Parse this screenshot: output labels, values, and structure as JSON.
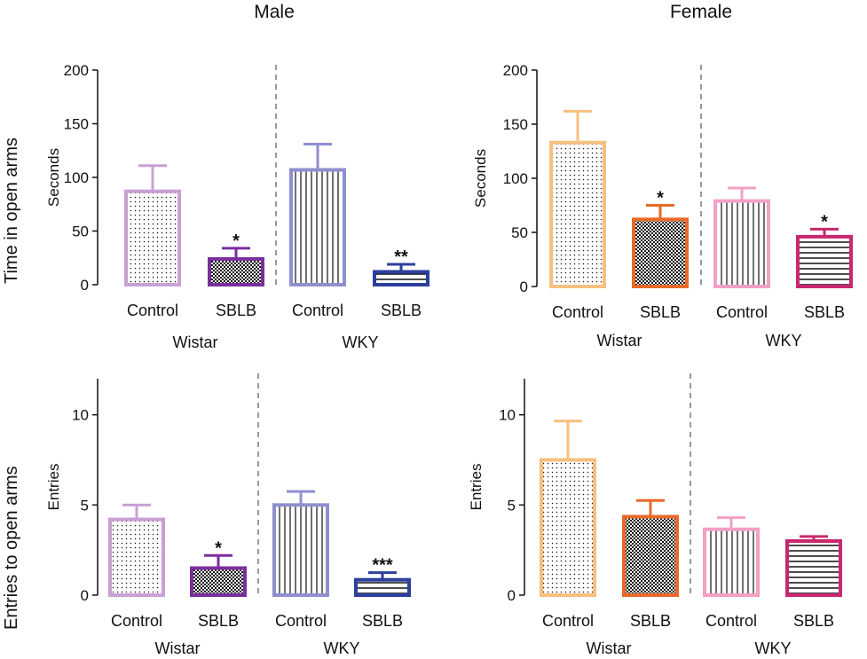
{
  "titles": {
    "male": "Male",
    "female": "Female",
    "row_time": "Time in open arms",
    "row_entries": "Entries to open arms"
  },
  "chart_data": [
    {
      "id": "male-time",
      "type": "bar",
      "ylabel": "Seconds",
      "ylim": [
        0,
        200
      ],
      "yticks": [
        0,
        50,
        100,
        150,
        200
      ],
      "groups": [
        "Wistar",
        "WKY"
      ],
      "categories": [
        "Control",
        "SBLB",
        "Control",
        "SBLB"
      ],
      "values": [
        87,
        24,
        107,
        12
      ],
      "errors": [
        24,
        10,
        24,
        7
      ],
      "significance": [
        "",
        "*",
        "",
        "**"
      ],
      "colors": [
        "#c9a0d4",
        "#7b2f9e",
        "#8f8fd0",
        "#2c3f9e"
      ],
      "patterns": [
        "dots",
        "checker",
        "vlines",
        "hlines"
      ]
    },
    {
      "id": "female-time",
      "type": "bar",
      "ylabel": "Seconds",
      "ylim": [
        0,
        200
      ],
      "yticks": [
        0,
        50,
        100,
        150,
        200
      ],
      "groups": [
        "Wistar",
        "WKY"
      ],
      "categories": [
        "Control",
        "SBLB",
        "Control",
        "SBLB"
      ],
      "values": [
        133,
        62,
        79,
        46
      ],
      "errors": [
        29,
        13,
        12,
        7
      ],
      "significance": [
        "",
        "*",
        "",
        "*"
      ],
      "colors": [
        "#f7c07e",
        "#ea6a2a",
        "#f2a0c4",
        "#c8286e"
      ],
      "patterns": [
        "dots",
        "checker",
        "vlines",
        "hlines"
      ]
    },
    {
      "id": "male-entries",
      "type": "bar",
      "ylabel": "Entries",
      "ylim": [
        0,
        12
      ],
      "yticks": [
        0,
        5,
        10
      ],
      "groups": [
        "Wistar",
        "WKY"
      ],
      "categories": [
        "Control",
        "SBLB",
        "Control",
        "SBLB"
      ],
      "values": [
        4.2,
        1.5,
        5.0,
        0.85
      ],
      "errors": [
        0.8,
        0.7,
        0.75,
        0.4
      ],
      "significance": [
        "",
        "*",
        "",
        "***"
      ],
      "colors": [
        "#c9a0d4",
        "#7b2f9e",
        "#8f8fd0",
        "#2c3f9e"
      ],
      "patterns": [
        "dots",
        "checker",
        "vlines",
        "hlines"
      ]
    },
    {
      "id": "female-entries",
      "type": "bar",
      "ylabel": "Entries",
      "ylim": [
        0,
        12
      ],
      "yticks": [
        0,
        5,
        10
      ],
      "groups": [
        "Wistar",
        "WKY"
      ],
      "categories": [
        "Control",
        "SBLB",
        "Control",
        "SBLB"
      ],
      "values": [
        7.5,
        4.35,
        3.65,
        3.0
      ],
      "errors": [
        2.15,
        0.9,
        0.65,
        0.25
      ],
      "significance": [
        "",
        "",
        "",
        ""
      ],
      "colors": [
        "#f7c07e",
        "#ea6a2a",
        "#f2a0c4",
        "#c8286e"
      ],
      "patterns": [
        "dots",
        "checker",
        "vlines",
        "hlines"
      ]
    }
  ]
}
